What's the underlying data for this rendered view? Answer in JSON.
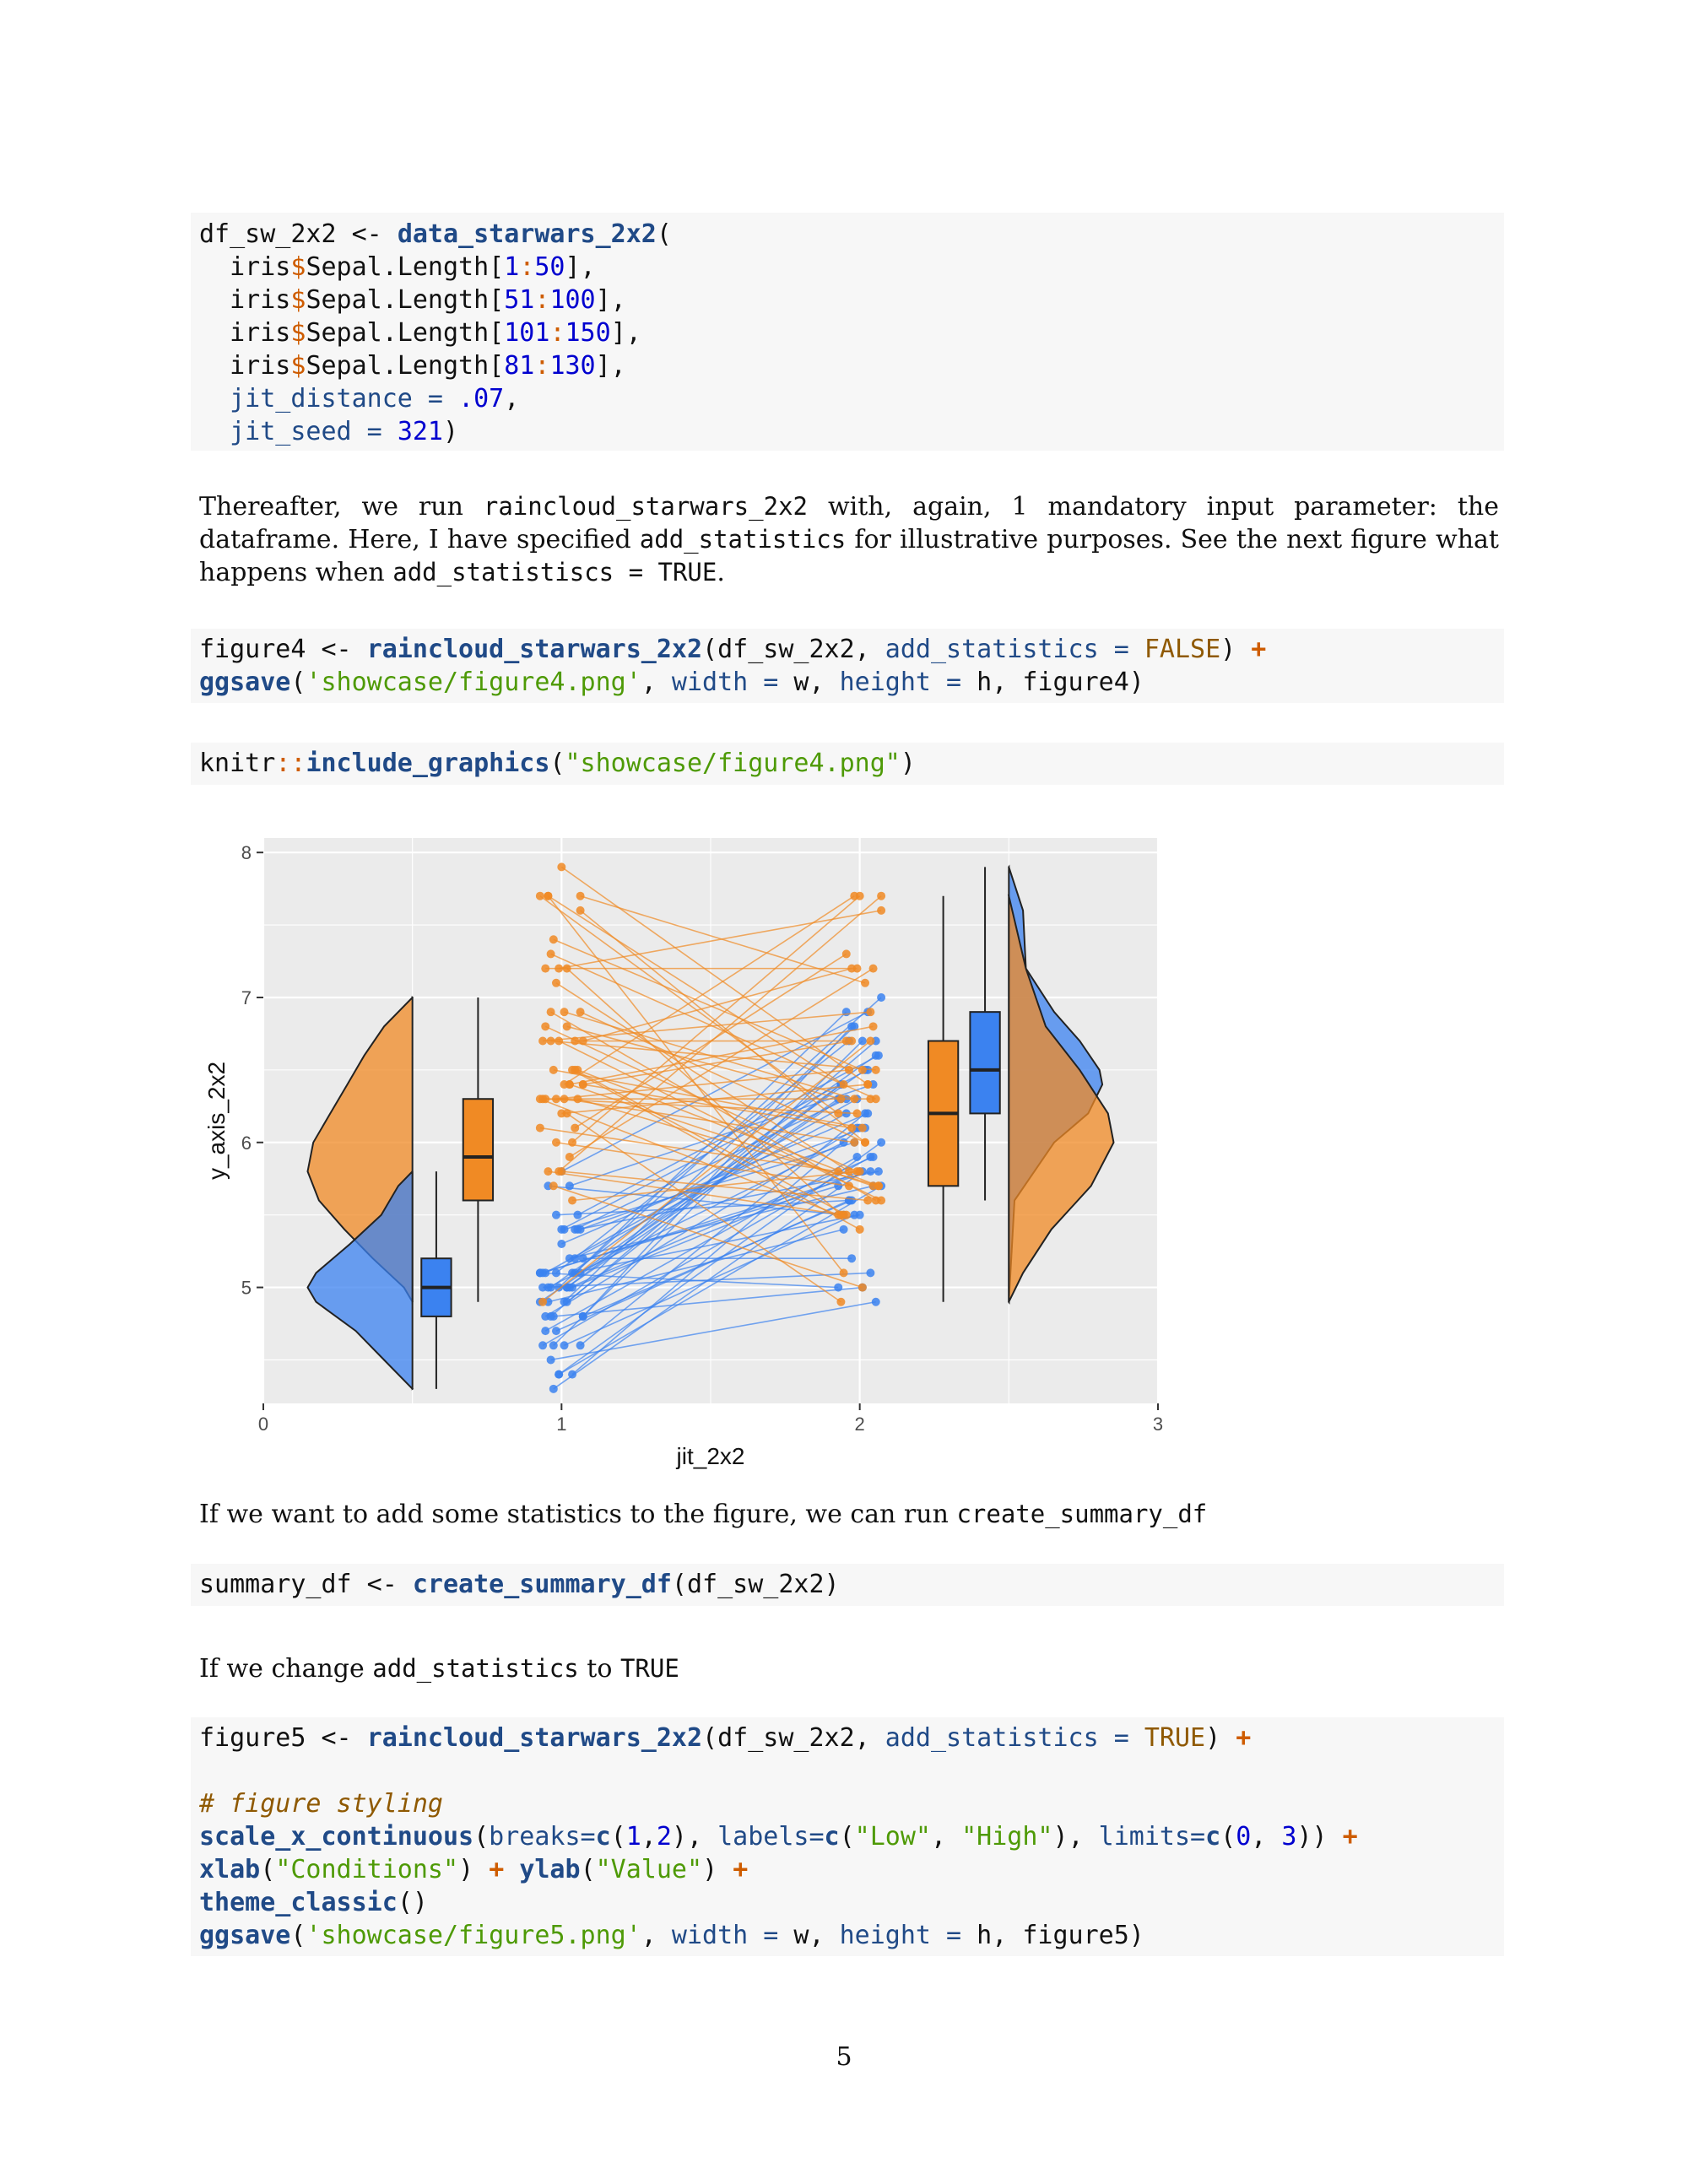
{
  "code_blocks": {
    "b1": [
      [
        [
          "df_sw_2x2 <- ",
          ""
        ],
        [
          "data_starwars_2x2",
          "fn"
        ],
        [
          "(",
          ""
        ]
      ],
      [
        [
          "  iris",
          ""
        ],
        [
          "$",
          "sym"
        ],
        [
          "Sepal.Length[",
          ""
        ],
        [
          "1",
          "num"
        ],
        [
          ":",
          "sym"
        ],
        [
          "50",
          "num"
        ],
        [
          "],",
          ""
        ]
      ],
      [
        [
          "  iris",
          ""
        ],
        [
          "$",
          "sym"
        ],
        [
          "Sepal.Length[",
          ""
        ],
        [
          "51",
          "num"
        ],
        [
          ":",
          "sym"
        ],
        [
          "100",
          "num"
        ],
        [
          "],",
          ""
        ]
      ],
      [
        [
          "  iris",
          ""
        ],
        [
          "$",
          "sym"
        ],
        [
          "Sepal.Length[",
          ""
        ],
        [
          "101",
          "num"
        ],
        [
          ":",
          "sym"
        ],
        [
          "150",
          "num"
        ],
        [
          "],",
          ""
        ]
      ],
      [
        [
          "  iris",
          ""
        ],
        [
          "$",
          "sym"
        ],
        [
          "Sepal.Length[",
          ""
        ],
        [
          "81",
          "num"
        ],
        [
          ":",
          "sym"
        ],
        [
          "130",
          "num"
        ],
        [
          "],",
          ""
        ]
      ],
      [
        [
          "  ",
          ""
        ],
        [
          "jit_distance",
          "arg"
        ],
        [
          " = ",
          "arg"
        ],
        [
          ".07",
          "num"
        ],
        [
          ",",
          ""
        ]
      ],
      [
        [
          "  ",
          ""
        ],
        [
          "jit_seed",
          "arg"
        ],
        [
          " = ",
          "arg"
        ],
        [
          "321",
          "num"
        ],
        [
          ")",
          ""
        ]
      ]
    ],
    "b2": [
      [
        [
          "figure4 <- ",
          ""
        ],
        [
          "raincloud_starwars_2x2",
          "fn"
        ],
        [
          "(df_sw_2x2, ",
          ""
        ],
        [
          "add_statistics",
          "arg"
        ],
        [
          " = ",
          "arg"
        ],
        [
          "FALSE",
          "cst"
        ],
        [
          ") ",
          ""
        ],
        [
          "+",
          "op"
        ]
      ],
      [
        [
          "ggsave",
          "fn"
        ],
        [
          "(",
          ""
        ],
        [
          "'showcase/figure4.png'",
          "str"
        ],
        [
          ", ",
          ""
        ],
        [
          "width",
          "arg"
        ],
        [
          " = ",
          "arg"
        ],
        [
          "w, ",
          ""
        ],
        [
          "height",
          "arg"
        ],
        [
          " = ",
          "arg"
        ],
        [
          "h, figure4)",
          ""
        ]
      ]
    ],
    "b3": [
      [
        [
          "knitr",
          ""
        ],
        [
          "::",
          "sym"
        ],
        [
          "include_graphics",
          "fn"
        ],
        [
          "(",
          ""
        ],
        [
          "\"showcase/figure4.png\"",
          "str"
        ],
        [
          ")",
          ""
        ]
      ]
    ],
    "b4": [
      [
        [
          "summary_df <- ",
          ""
        ],
        [
          "create_summary_df",
          "fn"
        ],
        [
          "(df_sw_2x2)",
          ""
        ]
      ]
    ],
    "b5": [
      [
        [
          "figure5 <- ",
          ""
        ],
        [
          "raincloud_starwars_2x2",
          "fn"
        ],
        [
          "(df_sw_2x2, ",
          ""
        ],
        [
          "add_statistics",
          "arg"
        ],
        [
          " = ",
          "arg"
        ],
        [
          "TRUE",
          "cst"
        ],
        [
          ") ",
          ""
        ],
        [
          "+",
          "op"
        ]
      ],
      [],
      [
        [
          "# figure styling",
          "cmt"
        ]
      ],
      [
        [
          "scale_x_continuous",
          "fn"
        ],
        [
          "(",
          ""
        ],
        [
          "breaks=",
          "arg"
        ],
        [
          "c",
          "fn"
        ],
        [
          "(",
          ""
        ],
        [
          "1",
          "num"
        ],
        [
          ",",
          ""
        ],
        [
          "2",
          "num"
        ],
        [
          "), ",
          ""
        ],
        [
          "labels=",
          "arg"
        ],
        [
          "c",
          "fn"
        ],
        [
          "(",
          ""
        ],
        [
          "\"Low\"",
          "str"
        ],
        [
          ", ",
          ""
        ],
        [
          "\"High\"",
          "str"
        ],
        [
          "), ",
          ""
        ],
        [
          "limits=",
          "arg"
        ],
        [
          "c",
          "fn"
        ],
        [
          "(",
          ""
        ],
        [
          "0",
          "num"
        ],
        [
          ", ",
          ""
        ],
        [
          "3",
          "num"
        ],
        [
          ")) ",
          ""
        ],
        [
          "+",
          "op"
        ]
      ],
      [
        [
          "xlab",
          "fn"
        ],
        [
          "(",
          ""
        ],
        [
          "\"Conditions\"",
          "str"
        ],
        [
          ") ",
          ""
        ],
        [
          "+",
          "op"
        ],
        [
          " ",
          ""
        ],
        [
          "ylab",
          "fn"
        ],
        [
          "(",
          ""
        ],
        [
          "\"Value\"",
          "str"
        ],
        [
          ") ",
          ""
        ],
        [
          "+",
          "op"
        ]
      ],
      [
        [
          "theme_classic",
          "fn"
        ],
        [
          "()",
          ""
        ]
      ],
      [
        [
          "ggsave",
          "fn"
        ],
        [
          "(",
          ""
        ],
        [
          "'showcase/figure5.png'",
          "str"
        ],
        [
          ", ",
          ""
        ],
        [
          "width",
          "arg"
        ],
        [
          " = ",
          "arg"
        ],
        [
          "w, ",
          ""
        ],
        [
          "height",
          "arg"
        ],
        [
          " = ",
          "arg"
        ],
        [
          "h, figure5)",
          ""
        ]
      ]
    ]
  },
  "prose": {
    "p1": [
      [
        "Thereafter, we run ",
        ""
      ],
      [
        "raincloud_starwars_2x2",
        "tt"
      ],
      [
        " with, again, 1 mandatory input parameter: the dataframe. Here, I have specified ",
        ""
      ],
      [
        "add_statistics",
        "tt"
      ],
      [
        " for illustrative purposes. See the next figure what happens when ",
        ""
      ],
      [
        "add_statistiscs = TRUE",
        "tt"
      ],
      [
        ".",
        ""
      ]
    ],
    "p2": [
      [
        "If we want to add some statistics to the figure, we can run ",
        ""
      ],
      [
        "create_summary_df",
        "tt"
      ]
    ],
    "p3": [
      [
        "If we change ",
        ""
      ],
      [
        "add_statistics",
        "tt"
      ],
      [
        " to ",
        ""
      ],
      [
        "TRUE",
        "tt"
      ]
    ]
  },
  "figure": {
    "xlabel": "jit_2x2",
    "ylabel": "y_axis_2x2",
    "x_ticks": [
      "0",
      "1",
      "2",
      "3"
    ],
    "y_ticks": [
      "5",
      "6",
      "7",
      "8"
    ]
  },
  "page_number": "5",
  "colors": {
    "blue": "#3b82f0",
    "orange": "#f08a24",
    "panel": "#ebebeb"
  },
  "chart_data": {
    "type": "raincloud",
    "xlabel": "jit_2x2",
    "ylabel": "y_axis_2x2",
    "xlim": [
      0,
      3
    ],
    "ylim": [
      4.2,
      8.1
    ],
    "x_ticks": [
      0,
      1,
      2,
      3
    ],
    "y_ticks": [
      5,
      6,
      7,
      8
    ],
    "boxplots": [
      {
        "group": "blue",
        "x": 0.58,
        "min": 4.3,
        "q1": 4.8,
        "median": 5.0,
        "q3": 5.2,
        "max": 5.8
      },
      {
        "group": "orange",
        "x": 0.72,
        "min": 4.9,
        "q1": 5.6,
        "median": 5.9,
        "q3": 6.3,
        "max": 7.0
      },
      {
        "group": "orange",
        "x": 2.28,
        "min": 4.9,
        "q1": 5.7,
        "median": 6.2,
        "q3": 6.7,
        "max": 7.7
      },
      {
        "group": "blue",
        "x": 2.42,
        "min": 5.6,
        "q1": 6.2,
        "median": 6.5,
        "q3": 6.9,
        "max": 7.9
      }
    ],
    "densities": [
      {
        "group": "orange",
        "side": "left",
        "base_x": 0.5,
        "profile": [
          [
            4.9,
            0
          ],
          [
            5.0,
            0.03
          ],
          [
            5.2,
            0.14
          ],
          [
            5.4,
            0.24
          ],
          [
            5.6,
            0.33
          ],
          [
            5.8,
            0.37
          ],
          [
            6.0,
            0.35
          ],
          [
            6.2,
            0.29
          ],
          [
            6.4,
            0.23
          ],
          [
            6.6,
            0.17
          ],
          [
            6.8,
            0.1
          ],
          [
            7.0,
            0
          ]
        ]
      },
      {
        "group": "blue",
        "side": "left",
        "base_x": 0.5,
        "profile": [
          [
            4.3,
            0
          ],
          [
            4.5,
            0.1
          ],
          [
            4.7,
            0.2
          ],
          [
            4.9,
            0.34
          ],
          [
            5.0,
            0.37
          ],
          [
            5.1,
            0.34
          ],
          [
            5.3,
            0.22
          ],
          [
            5.5,
            0.11
          ],
          [
            5.7,
            0.05
          ],
          [
            5.8,
            0
          ]
        ]
      },
      {
        "group": "blue",
        "side": "right",
        "base_x": 2.5,
        "profile": [
          [
            4.9,
            0
          ],
          [
            5.6,
            0.02
          ],
          [
            6.0,
            0.16
          ],
          [
            6.2,
            0.28
          ],
          [
            6.4,
            0.33
          ],
          [
            6.5,
            0.32
          ],
          [
            6.7,
            0.25
          ],
          [
            6.9,
            0.16
          ],
          [
            7.2,
            0.06
          ],
          [
            7.6,
            0.05
          ],
          [
            7.9,
            0
          ]
        ]
      },
      {
        "group": "orange",
        "side": "right",
        "base_x": 2.5,
        "profile": [
          [
            4.9,
            0
          ],
          [
            5.1,
            0.05
          ],
          [
            5.4,
            0.15
          ],
          [
            5.7,
            0.29
          ],
          [
            6.0,
            0.37
          ],
          [
            6.2,
            0.35
          ],
          [
            6.5,
            0.25
          ],
          [
            6.8,
            0.13
          ],
          [
            7.2,
            0.06
          ],
          [
            7.7,
            0
          ]
        ]
      }
    ],
    "pairs": {
      "blue": [
        [
          5.1,
          5.0
        ],
        [
          4.9,
          5.4
        ],
        [
          4.7,
          5.6
        ],
        [
          4.6,
          5.5
        ],
        [
          5.0,
          5.8
        ],
        [
          5.4,
          6.1
        ],
        [
          4.6,
          5.9
        ],
        [
          5.0,
          6.6
        ],
        [
          4.4,
          6.0
        ],
        [
          4.9,
          6.4
        ],
        [
          5.4,
          6.3
        ],
        [
          4.8,
          6.8
        ],
        [
          4.8,
          6.1
        ],
        [
          4.3,
          5.8
        ],
        [
          5.8,
          6.9
        ],
        [
          5.7,
          6.4
        ],
        [
          5.4,
          5.8
        ],
        [
          5.1,
          5.7
        ],
        [
          5.7,
          5.5
        ],
        [
          5.1,
          6.7
        ],
        [
          5.4,
          6.0
        ],
        [
          5.1,
          5.5
        ],
        [
          4.6,
          6.2
        ],
        [
          5.1,
          5.8
        ],
        [
          4.8,
          6.7
        ],
        [
          5.0,
          7.0
        ],
        [
          5.0,
          6.3
        ],
        [
          5.2,
          6.2
        ],
        [
          5.2,
          5.2
        ],
        [
          4.7,
          5.9
        ],
        [
          4.8,
          5.0
        ],
        [
          5.4,
          6.5
        ],
        [
          5.2,
          5.7
        ],
        [
          5.5,
          6.6
        ],
        [
          4.9,
          6.3
        ],
        [
          5.0,
          6.0
        ],
        [
          5.5,
          5.6
        ],
        [
          4.9,
          6.8
        ],
        [
          4.4,
          6.1
        ],
        [
          5.1,
          6.5
        ],
        [
          5.0,
          5.1
        ],
        [
          4.5,
          4.9
        ],
        [
          4.4,
          5.7
        ],
        [
          5.0,
          6.4
        ],
        [
          5.1,
          6.9
        ],
        [
          4.8,
          5.6
        ],
        [
          5.1,
          6.3
        ],
        [
          4.6,
          6.7
        ],
        [
          5.3,
          6.2
        ],
        [
          5.0,
          5.9
        ]
      ],
      "orange": [
        [
          6.3,
          5.5
        ],
        [
          5.8,
          5.5
        ],
        [
          7.1,
          5.8
        ],
        [
          6.3,
          6.0
        ],
        [
          6.5,
          5.4
        ],
        [
          7.6,
          6.0
        ],
        [
          4.9,
          6.7
        ],
        [
          7.3,
          6.3
        ],
        [
          6.7,
          5.6
        ],
        [
          7.2,
          5.5
        ],
        [
          6.5,
          5.5
        ],
        [
          6.4,
          6.1
        ],
        [
          6.8,
          5.8
        ],
        [
          5.7,
          5.0
        ],
        [
          5.8,
          5.6
        ],
        [
          6.4,
          5.7
        ],
        [
          6.5,
          5.7
        ],
        [
          7.7,
          6.2
        ],
        [
          7.7,
          5.1
        ],
        [
          6.0,
          5.7
        ],
        [
          6.9,
          6.3
        ],
        [
          5.6,
          5.8
        ],
        [
          7.7,
          7.1
        ],
        [
          6.3,
          6.3
        ],
        [
          6.7,
          6.5
        ],
        [
          7.2,
          7.6
        ],
        [
          6.2,
          4.9
        ],
        [
          6.1,
          7.3
        ],
        [
          6.4,
          6.7
        ],
        [
          7.2,
          7.2
        ],
        [
          7.4,
          6.5
        ],
        [
          7.9,
          6.4
        ],
        [
          6.4,
          6.8
        ],
        [
          6.3,
          5.7
        ],
        [
          6.1,
          5.8
        ],
        [
          7.7,
          6.4
        ],
        [
          6.3,
          6.5
        ],
        [
          6.4,
          7.7
        ],
        [
          6.0,
          7.7
        ],
        [
          6.9,
          6.0
        ],
        [
          6.7,
          6.9
        ],
        [
          6.9,
          5.6
        ],
        [
          5.8,
          7.7
        ],
        [
          6.8,
          6.3
        ],
        [
          6.7,
          6.7
        ],
        [
          6.7,
          7.2
        ],
        [
          6.3,
          6.2
        ],
        [
          6.5,
          6.1
        ],
        [
          6.2,
          6.4
        ],
        [
          5.9,
          7.2
        ]
      ]
    }
  }
}
